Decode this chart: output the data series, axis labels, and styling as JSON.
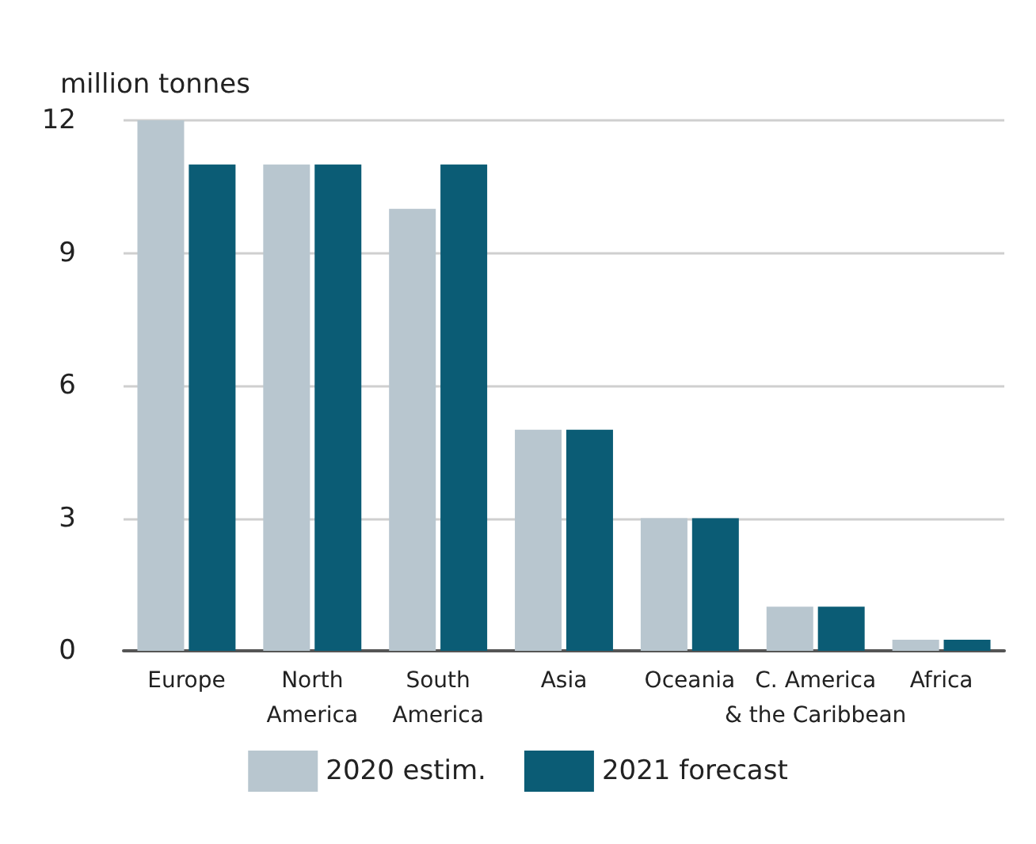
{
  "chart_data": {
    "type": "bar",
    "ylabel": "million tonnes",
    "categories": [
      "Europe",
      "North\nAmerica",
      "South\nAmerica",
      "Asia",
      "Oceania",
      "C. America\n& the Caribbean",
      "Africa"
    ],
    "series": [
      {
        "name": "2020 estim.",
        "color": "#b8c6cf",
        "values": [
          12,
          11,
          10,
          5,
          3,
          1,
          0.25
        ]
      },
      {
        "name": "2021 forecast",
        "color": "#0b5c75",
        "values": [
          11,
          11,
          11,
          5,
          3,
          1,
          0.25
        ]
      }
    ],
    "ylim": [
      0,
      12
    ],
    "yticks": [
      0,
      3,
      6,
      9,
      12
    ],
    "grid": "y",
    "legend": "bottom"
  }
}
